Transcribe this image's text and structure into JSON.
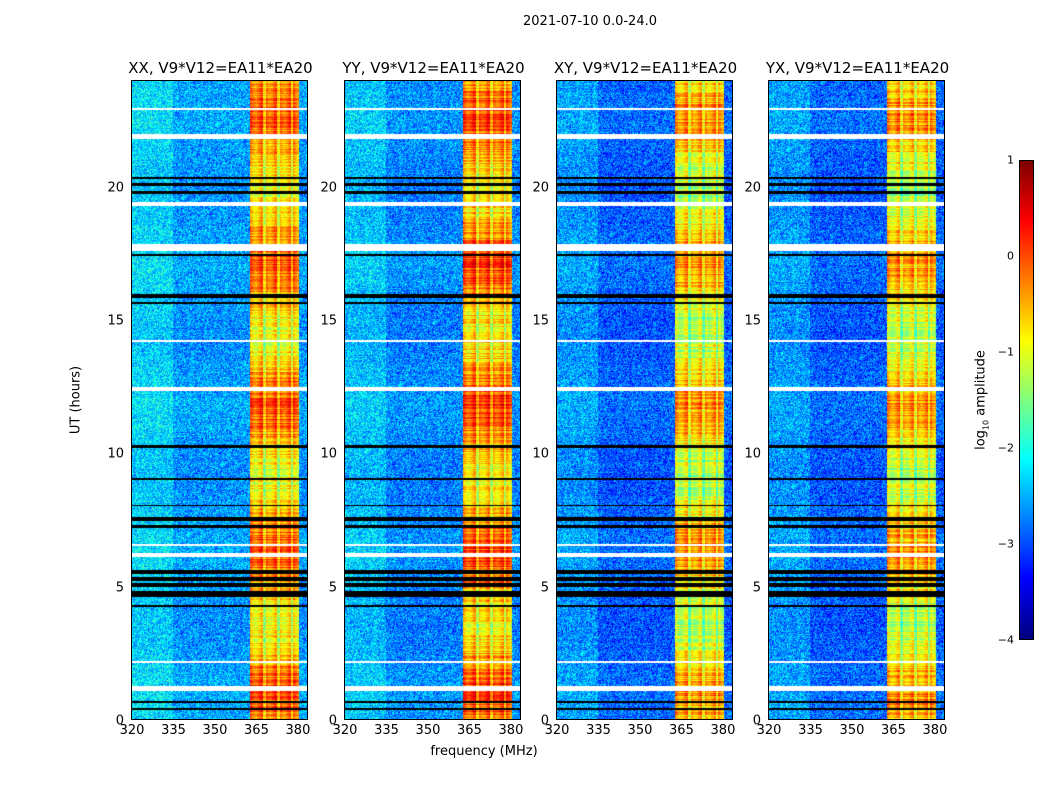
{
  "chart_data": {
    "type": "heatmap",
    "title": "2021-07-10 0.0-24.0",
    "xlabel": "frequency (MHz)",
    "ylabel": "UT (hours)",
    "xlim": [
      320,
      384
    ],
    "ylim": [
      0,
      24
    ],
    "xticks": [
      "320",
      "335",
      "350",
      "365",
      "380"
    ],
    "xtick_values": [
      320,
      335,
      350,
      365,
      380
    ],
    "yticks": [
      "0",
      "5",
      "10",
      "15",
      "20"
    ],
    "ytick_values": [
      0,
      5,
      10,
      15,
      20
    ],
    "colormap": "jet",
    "colorbar": {
      "label_main": "log",
      "label_sub": "10",
      "label_rest": " amplitude",
      "range": [
        -4,
        1
      ],
      "ticks": [
        "1",
        "0",
        "−1",
        "−2",
        "−3",
        "−4"
      ],
      "tick_values": [
        1,
        0,
        -1,
        -2,
        -3,
        -4
      ]
    },
    "panels": [
      {
        "title": "XX, V9*V12=EA11*EA20",
        "background_log_amp": -2.6,
        "rfi_log_amp": -0.4
      },
      {
        "title": "YY, V9*V12=EA11*EA20",
        "background_log_amp": -2.7,
        "rfi_log_amp": -0.3
      },
      {
        "title": "XY, V9*V12=EA11*EA20",
        "background_log_amp": -2.9,
        "rfi_log_amp": -0.7
      },
      {
        "title": "YX, V9*V12=EA11*EA20",
        "background_log_amp": -2.9,
        "rfi_log_amp": -0.7
      }
    ],
    "rfi_band_mhz": [
      363,
      381
    ],
    "rfi_gaps_mhz": [
      368.5,
      373.5,
      378.5
    ],
    "flagged_hours": [
      [
        1.05,
        1.25
      ],
      [
        2.1,
        2.2
      ],
      [
        6.1,
        6.25
      ],
      [
        6.5,
        6.6
      ],
      [
        12.35,
        12.5
      ],
      [
        14.2,
        14.25
      ],
      [
        17.6,
        17.85
      ],
      [
        19.3,
        19.45
      ],
      [
        21.8,
        22.0
      ],
      [
        22.9,
        23.0
      ]
    ],
    "dark_hours": [
      [
        0.35,
        0.42
      ],
      [
        0.6,
        0.66
      ],
      [
        4.2,
        4.3
      ],
      [
        4.6,
        4.8
      ],
      [
        4.95,
        5.1
      ],
      [
        5.2,
        5.35
      ],
      [
        5.45,
        5.6
      ],
      [
        7.2,
        7.3
      ],
      [
        7.45,
        7.6
      ],
      [
        8.0,
        8.05
      ],
      [
        9.0,
        9.05
      ],
      [
        10.2,
        10.3
      ],
      [
        15.6,
        15.7
      ],
      [
        15.85,
        16.0
      ],
      [
        17.4,
        17.5
      ],
      [
        19.75,
        19.85
      ],
      [
        20.05,
        20.15
      ],
      [
        20.3,
        20.4
      ]
    ]
  }
}
